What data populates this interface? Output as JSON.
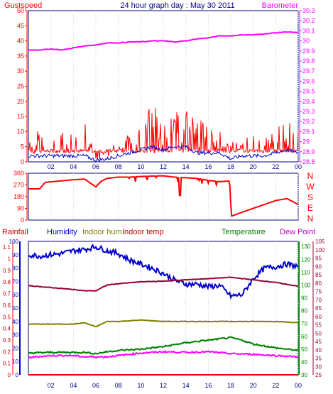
{
  "chart_data": [
    {
      "type": "line",
      "title": "24 hour graph day : May 30 2011",
      "left_label": "Gustspeed",
      "right_label": "Barometer",
      "x_ticks": [
        "02",
        "04",
        "06",
        "08",
        "10",
        "12",
        "14",
        "16",
        "18",
        "20",
        "22",
        "00"
      ],
      "x_range_hours": [
        0,
        24
      ],
      "y_left_ticks": [
        "0",
        "5",
        "10",
        "15",
        "20",
        "25",
        "30",
        "35",
        "40",
        "45",
        "50"
      ],
      "y_left_range": [
        0,
        50
      ],
      "y_right_ticks": [
        "28.8",
        "28.9",
        "29",
        "29.1",
        "29.2",
        "29.3",
        "29.4",
        "29.5",
        "29.6",
        "29.7",
        "29.8",
        "29.9",
        "30",
        "30.1",
        "30.2",
        "30.3"
      ],
      "y_right_range": [
        28.8,
        30.3
      ],
      "colors": {
        "gust": "#ff0000",
        "wind": "#0000cc",
        "barometer": "#ff00ff",
        "title": "#000080"
      },
      "series": [
        {
          "name": "Gustspeed",
          "axis": "left",
          "x_hours": [
            0,
            1,
            2,
            3,
            4,
            5,
            6,
            7,
            8,
            9,
            10,
            11,
            12,
            13,
            14,
            15,
            16,
            17,
            18,
            19,
            20,
            21,
            22,
            23,
            24
          ],
          "values": [
            3,
            5,
            6,
            5,
            5,
            6,
            1,
            2,
            4,
            6,
            8,
            9,
            7,
            8,
            9,
            6,
            6,
            5,
            3,
            4,
            4,
            4,
            5,
            7,
            5
          ]
        },
        {
          "x_hours": [
            0,
            1,
            2,
            3,
            4,
            5,
            6,
            7,
            8,
            9,
            10,
            11,
            12,
            13,
            14,
            15,
            16,
            17,
            18,
            19,
            20,
            21,
            22,
            23,
            24
          ],
          "values": [
            2,
            2,
            2,
            2,
            2,
            2,
            0.5,
            1,
            2,
            3,
            4,
            5,
            4,
            5,
            5,
            3,
            3,
            3,
            1,
            2,
            2,
            2,
            3,
            4,
            3
          ]
        },
        {
          "name": "Barometer",
          "axis": "right",
          "x_hours": [
            0,
            1,
            2,
            3,
            4,
            5,
            6,
            7,
            8,
            9,
            10,
            11,
            12,
            13,
            14,
            15,
            16,
            17,
            18,
            19,
            20,
            21,
            22,
            23,
            24
          ],
          "values": [
            29.91,
            29.91,
            29.92,
            29.91,
            29.93,
            29.95,
            29.96,
            29.98,
            29.98,
            29.99,
            29.99,
            30.0,
            30.0,
            29.99,
            30.0,
            30.02,
            30.03,
            30.05,
            30.05,
            30.06,
            30.06,
            30.07,
            30.08,
            30.09,
            30.08
          ]
        }
      ]
    },
    {
      "type": "line",
      "y_ticks": [
        "0",
        "90",
        "180",
        "270",
        "360"
      ],
      "y_range": [
        0,
        360
      ],
      "compass_labels": [
        "N",
        "W",
        "S",
        "E",
        "N"
      ],
      "color": "#ff0000",
      "series": [
        {
          "x_hours": [
            0,
            1,
            1.5,
            4,
            5,
            6,
            6.5,
            7,
            8,
            9,
            10,
            11,
            12,
            13,
            14,
            15,
            16,
            17,
            17.9,
            18.05,
            19,
            20,
            21,
            22,
            23,
            24
          ],
          "values": [
            240,
            240,
            290,
            310,
            315,
            255,
            300,
            320,
            330,
            330,
            335,
            338,
            340,
            330,
            325,
            320,
            305,
            295,
            300,
            30,
            60,
            90,
            120,
            150,
            165,
            120
          ]
        }
      ]
    },
    {
      "type": "line",
      "top_labels": [
        "Rainfall",
        "Humidity",
        "Indoor hum",
        "Indoor temp",
        "Temperature",
        "Dew Point"
      ],
      "label_colors": [
        "#cc0000",
        "#0000cc",
        "#808000",
        "#cc0000",
        "#008000",
        "#cc00cc"
      ],
      "y_rain_ticks": [
        "0",
        "0.1",
        "0.2",
        "0.3",
        "0.4",
        "0.5",
        "0.6",
        "0.7",
        "0.8",
        "0.9",
        "1",
        "1.1"
      ],
      "y_rain_range": [
        0,
        1.15
      ],
      "y_humidity_ticks": [
        "0",
        "10",
        "20",
        "30",
        "40",
        "50",
        "60",
        "70",
        "80",
        "90",
        "100"
      ],
      "y_humidity_range": [
        0,
        100
      ],
      "y_temp_ticks": [
        "30",
        "40",
        "50",
        "60",
        "70",
        "80",
        "90",
        "100",
        "110",
        "120",
        "130"
      ],
      "y_temp_range": [
        30,
        134
      ],
      "y_temp2_ticks": [
        "25",
        "30",
        "35",
        "40",
        "45",
        "50",
        "55",
        "60",
        "65",
        "70",
        "75",
        "80",
        "85",
        "90",
        "95",
        "100",
        "105"
      ],
      "y_temp2_range": [
        25,
        105
      ],
      "series": [
        {
          "name": "Humidity",
          "axis": "humidity",
          "color": "#0000cc",
          "x_hours": [
            0,
            1,
            2,
            3,
            4,
            5,
            6,
            7,
            8,
            9,
            10,
            11,
            12,
            13,
            14,
            15,
            16,
            17,
            18,
            19,
            20,
            21,
            22,
            23,
            24
          ],
          "values": [
            90,
            89,
            90,
            91,
            93,
            94,
            96,
            93,
            91,
            86,
            83,
            80,
            76,
            71,
            68,
            68,
            66,
            67,
            59,
            60,
            72,
            80,
            81,
            83,
            81
          ]
        },
        {
          "name": "Indoor temp",
          "axis": "temp",
          "color": "#990033",
          "x_hours": [
            0,
            2,
            4,
            5,
            6,
            7,
            8,
            10,
            12,
            14,
            16,
            18,
            19,
            20,
            22,
            24
          ],
          "values": [
            99.5,
            98,
            96.5,
            95.5,
            95.5,
            100,
            101,
            102.5,
            103,
            104,
            105,
            106,
            105,
            104,
            102,
            99
          ]
        },
        {
          "name": "Indoor hum",
          "axis": "humidity",
          "color": "#808000",
          "x_hours": [
            0,
            2,
            4,
            5,
            6,
            7,
            8,
            10,
            12,
            14,
            16,
            18,
            20,
            22,
            24
          ],
          "values": [
            38,
            38,
            38,
            39,
            36,
            40,
            40,
            41,
            40,
            40,
            40,
            40,
            40,
            40,
            39
          ]
        },
        {
          "name": "Temperature",
          "axis": "temp",
          "color": "#008000",
          "x_hours": [
            0,
            2,
            4,
            5,
            6,
            7,
            8,
            10,
            12,
            14,
            16,
            18,
            19,
            20,
            22,
            24
          ],
          "values": [
            47,
            47.5,
            47.5,
            47.5,
            46.5,
            48,
            49,
            50,
            52,
            55,
            57,
            59,
            57,
            54,
            51,
            49
          ]
        },
        {
          "name": "Dew Point",
          "axis": "temp",
          "color": "#ff00ff",
          "x_hours": [
            0,
            2,
            4,
            5,
            6,
            7,
            8,
            10,
            12,
            14,
            16,
            18,
            20,
            22,
            24
          ],
          "values": [
            43.5,
            45,
            45,
            44,
            44,
            44,
            45,
            47,
            48,
            47.5,
            48,
            46.5,
            46,
            45,
            44
          ]
        },
        {
          "name": "Rainfall",
          "axis": "rain",
          "color": "#ff0000",
          "x_hours": [
            0,
            24
          ],
          "values": [
            0,
            0
          ]
        }
      ]
    }
  ]
}
